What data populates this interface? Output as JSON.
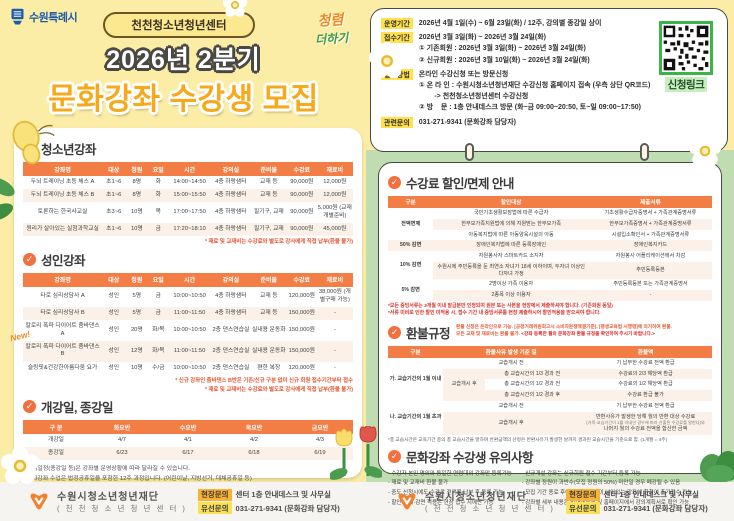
{
  "header": {
    "city": "수원특례시",
    "badge": "천천청소년청년센터",
    "title_line1": "2026년 2분기",
    "title_line2": "문화강좌 수강생 모집",
    "slogan_line1": "청렴",
    "slogan_line2": "더하기"
  },
  "info": {
    "rows": [
      {
        "label": "운영기간",
        "lines": [
          "2026년 4월 1일(수) ~ 6월 23일(화) / 12주, 강의별 종강일 상이"
        ]
      },
      {
        "label": "접수기간",
        "lines": [
          "2026년 3월 3일(화) ~ 2026년 3월 24일(화)",
          "① 기존회원 : 2026년 3월 3일(화) ~ 2026년 3월 24일(화)",
          "② 신규회원 : 2026년 3월 10일(화) ~ 2026년 3월 24일(화)"
        ]
      },
      {
        "label": "접수방법",
        "lines": [
          "온라인 수강신청 또는 방문신청",
          "① 온 라 인 : 수원시청소년청년재단 수강신청 홈페이지 접속 (우측 상단 QR코드)",
          "        -> 천천청소년청년센터 수강신청",
          "② 방    문 : 1층 안내데스크 방문 (화~금 09:00~20:50, 토~일 09:00~17:50)"
        ]
      },
      {
        "label": "관련문의",
        "lines": [
          "031-271-9341 (문화강좌 담당자)"
        ]
      }
    ],
    "qr_label": "신청링크"
  },
  "youth": {
    "title": "청소년강좌",
    "headers": [
      "강좌명",
      "대상",
      "정원",
      "요일",
      "시간",
      "강의실",
      "준비물",
      "수강료",
      "재료비"
    ],
    "rows": [
      [
        "두뇌 트레이닝 초등 체스 A",
        "초1~6",
        "8명",
        "화",
        "14:00~14:50",
        "4층 하랑샘터",
        "교재 등",
        "90,000원",
        "12,000원"
      ],
      [
        "두뇌 트레이닝 초등 체스 B",
        "초1~6",
        "8명",
        "화",
        "15:00~15:50",
        "4층 하랑샘터",
        "교재 등",
        "90,000원",
        "12,000원"
      ],
      [
        "토론하는 한국사교실",
        "초3~6",
        "10명",
        "목",
        "17:00~17:50",
        "4층 하랑샘터",
        "필기구, 교재",
        "90,000원",
        "5,000원 (교재 개별준비)"
      ],
      [
        "원리가 살아있는 실험과학교실",
        "초1~6",
        "10명",
        "금",
        "17:20~18:10",
        "4층 하랑샘터",
        "필기구, 교재",
        "90,000원",
        "45,000원"
      ]
    ],
    "note": "* 재료 및 교재비는 수강료와 별도로 강사에게 직접 납부(환불 불가)"
  },
  "adult": {
    "title": "성인강좌",
    "headers": [
      "강좌명",
      "대상",
      "정원",
      "요일",
      "시간",
      "강의실",
      "준비물",
      "수강료",
      "재료비"
    ],
    "rows": [
      [
        "타로 심리상담사 A",
        "성인",
        "5명",
        "금",
        "10:00~10:50",
        "4층 하랑샘터",
        "교재 등",
        "120,000원",
        "38,000원 (개별구매 가능)"
      ],
      [
        "타로 심리상담사 B",
        "성인",
        "5명",
        "금",
        "11:00~11:50",
        "4층 하랑샘터",
        "교재 등",
        "150,000원",
        "-"
      ],
      [
        "칼로리 폭파 다이어트 줌바댄스 A",
        "성인",
        "20명",
        "화/목",
        "10:00~10:50",
        "2층 댄스연습실",
        "실내용 운동화",
        "150,000원",
        "-"
      ],
      [
        "칼로리 폭파 다이어트 줌바댄스 B",
        "성인",
        "12명",
        "화/목",
        "11:00~11:50",
        "2층 댄스연습실",
        "실내용 운동화",
        "150,000원",
        "-"
      ],
      [
        "슬링핏&건강한아름다움 요가",
        "성인",
        "10명",
        "수/금",
        "10:00~10:50",
        "2층 댄스연습실",
        "편한 복장",
        "120,000원",
        "-"
      ]
    ],
    "new_badge": "New!",
    "notes": [
      "* 신규 강좌인 줌바댄스 B반은 기존/신규 구분 없이 신규 회원 접수기간부터 접수",
      "* 재료 및 교재비는 수강료와 별도로 강사에게 직접 납부(환불 불가)"
    ]
  },
  "schedule": {
    "title": "개강일, 종강일",
    "headers": [
      "구 분",
      "화요반",
      "수요반",
      "목요반",
      "금요반"
    ],
    "rows": [
      [
        "개강일",
        "4/7",
        "4/1",
        "4/2",
        "4/3"
      ],
      [
        "종강일",
        "6/23",
        "6/17",
        "6/18",
        "6/19"
      ]
    ],
    "notes": [
      "- 상기일정(종강일 등)은 강좌별 운영상황에 따라 달라질 수 있습니다.",
      "- 문화강좌 수업은 법정공휴일을 포함한 12주 과정입니다. (어린이날, 지방선거, 대체공휴일 등)"
    ]
  },
  "discount": {
    "title": "수강료 할인/면제 안내",
    "headers": [
      "구분",
      "할인대상",
      "제출서류"
    ],
    "cat1": "전액면제",
    "cat2": "50% 감면",
    "cat3": "10% 감면",
    "cat4": "5% 감면",
    "rows": [
      {
        "desc": "국민기초생활보장법에 따른 수급자",
        "doc": "기초생활수급자증명서 + 가족관계증명서류"
      },
      {
        "desc": "한부모가족지원법에 의해 지원받는 한부모가족",
        "doc": "한부모가족증명서 + 가족관계증명서류"
      },
      {
        "desc": "아동복지법에 따른 아동양육시설의 아동",
        "doc": "시설입소확인서 + 가족관계증명서류"
      },
      {
        "desc": "장애인복지법에 따른 등록장애인",
        "doc": "장애인복지카드"
      },
      {
        "desc": "자원봉사자 스마트카드 소지자",
        "doc": "자원봉사 어플리케이션에서 차감"
      },
      {
        "desc": "수원시에 주민등록을 둔 최연소 자녀가 18세 이하이며, 두자녀 이상인 다자녀 가정",
        "doc": "주민등록등본"
      },
      {
        "desc": "2명이상 가족 이용자",
        "doc": "주민등록등본 또는 가족관계증명서"
      },
      {
        "desc": "2종목 이상 이용자",
        "doc": "-"
      }
    ],
    "notes": [
      "*모든 증빙서류는 3개월 이내 발급분만 인정되며 원본 또는 사본을 현장에서 제출하셔야 합니다. (기존회원 동일)",
      "*서류 미비로 인한 할인 미적용 시, 접수 기간 내 증빙서류를 현장 제출하시어 할인적용을 받으셔야 합니다."
    ]
  },
  "refund": {
    "title": "환불규정",
    "intro1": "환불 신청은 온라인으로 가능. [공정거래위원회고시 소비자분쟁해결기준], [평생교육법 시행령]에 의거하여 환불.",
    "intro2": "모든 교재 및 재료비는 환불 불가. ",
    "intro2_em": "<강좌 등록한 월의 문화강좌 환불 규정을 확인하여 주시기 바랍니다.>",
    "col1": "구분",
    "col2": "환불사유 발생 기준 일",
    "col3": "환불액",
    "group_a": "가. 교습기간의 1월 이내",
    "group_b": "나. 교습기간의 1월 초과",
    "before_label": "교습개시 전",
    "after_label": "교습개시 후",
    "full_refund": "기 납부한 수강료 전액 환급",
    "a_rows": [
      [
        "총 교습시간의 1/3 경과 전",
        "수강료의 2/3 해당액 환급"
      ],
      [
        "총 교습시간의 1/2 경과 전",
        "수강료의 1/2 해당액 환급"
      ],
      [
        "총 교습시간의 1/2 경과 후",
        "수강료 환급 불가"
      ]
    ],
    "b_after_line1": "반환사유가 발생한 당해 월의 반환 대상 수강료",
    "b_after_line2": "(가목-교습기간이 1월 이내인 경우에 따라 산출된 수강료를 말한다)와",
    "b_after_line3": "나머지 월의 수강료 전액을 합산한 금액",
    "note": "*총 교습시간은 교육기간 중의 총 교습시간을 말하며 반환금액의 산정은 반환사유가 발생한 날까지 경과된 교습시간을 기준으로 함. (1개월 = 4주)"
  },
  "notice": {
    "title": "문화강좌 수강생 유의사항",
    "left": [
      "- 수강자 본인 명의와 동일한 연령대의 강좌만 등록가능",
      "- 재료 및 교재비 환불 불가",
      "- 중도 신청시에도 수강료 전액을 납부 후 등록 가능",
      "- 할인·면제·감면 적용은 현장 접수 시에만 가능"
    ],
    "right": [
      "- 신규개설 강좌는 신규회원 접수 기간부터 등록 가능",
      "- 강좌별 정원이 과반수(모집 정원의 50%) 미만일 경우 폐강될 수 있음",
      "- 모집 기간 종료 후에도 잔여 정원이 남아있는 강좌에 한하여 추가접수 가능",
      "- 강좌별 세부 내용은 안내데스크 및 홈페이지에서 강의계획서로 확인 가능"
    ]
  },
  "footer": {
    "org": "수원시청소년청년재단",
    "org_sub": "( 천 천 청 소 년 청 년 센 터 )",
    "field_label": "현장문의",
    "field_value": "센터 1층 안내데스크 및 사무실",
    "phone_label": "유선문의",
    "phone_value": "031-271-9341 (문화강좌 담당자)"
  }
}
